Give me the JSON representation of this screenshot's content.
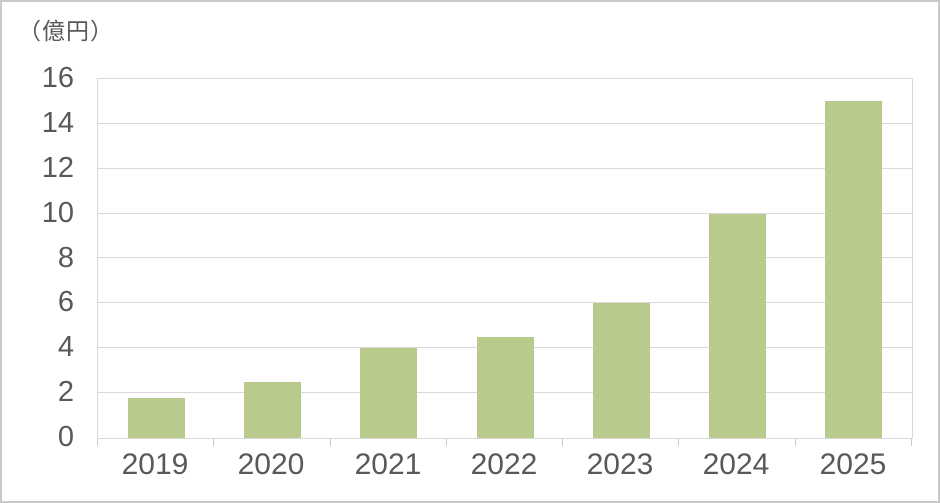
{
  "chart_data": {
    "type": "bar",
    "title": "",
    "xlabel": "",
    "ylabel": "（億円）",
    "categories": [
      "2019",
      "2020",
      "2021",
      "2022",
      "2023",
      "2024",
      "2025"
    ],
    "values": [
      1.8,
      2.5,
      4,
      4.5,
      6,
      10,
      15
    ],
    "ylim": [
      0,
      16
    ],
    "yticks": [
      0,
      2,
      4,
      6,
      8,
      10,
      12,
      14,
      16
    ],
    "grid": "horizontal",
    "legend_position": "none",
    "colors": {
      "bar": "#b8ca8c",
      "axis_text": "#595959",
      "gridline": "#d9d9d9",
      "outer_border": "#c9c9c9"
    }
  }
}
